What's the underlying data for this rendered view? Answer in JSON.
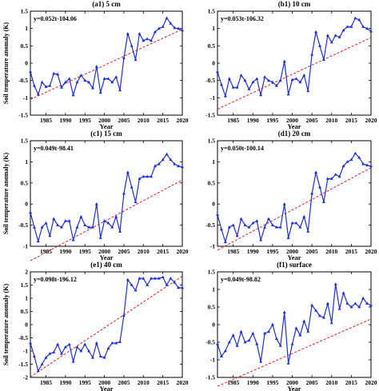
{
  "figure": {
    "ylabel": "Soil temperature anomaly (K)",
    "xlabel": "Year"
  },
  "colors": {
    "series": "#1f2fd6",
    "trend": "#e02020",
    "axes": "#000000"
  },
  "chart_data": [
    {
      "type": "line",
      "title": "(a1) 5 cm",
      "equation": "y=0.052t-104.06",
      "xlabel": "Year",
      "ylabel": "Soil temperature anomaly (K)",
      "xlim": [
        1981,
        2020
      ],
      "ylim": [
        -1.5,
        1.5
      ],
      "xticks": [
        1985,
        1990,
        1995,
        2000,
        2005,
        2010,
        2015,
        2020
      ],
      "yticks": [
        -1.5,
        -1,
        -0.5,
        0,
        0.5,
        1,
        1.5
      ],
      "trend": {
        "slope": 0.052,
        "intercept": -104.06
      },
      "x": [
        1981,
        1982,
        1983,
        1984,
        1985,
        1986,
        1987,
        1988,
        1989,
        1990,
        1991,
        1992,
        1993,
        1994,
        1995,
        1996,
        1997,
        1998,
        1999,
        2000,
        2001,
        2002,
        2003,
        2004,
        2005,
        2006,
        2007,
        2008,
        2009,
        2010,
        2011,
        2012,
        2013,
        2014,
        2015,
        2016,
        2017,
        2018,
        2019,
        2020
      ],
      "y": [
        -0.25,
        -0.65,
        -0.9,
        -0.55,
        -0.68,
        -0.65,
        -0.3,
        -0.32,
        -0.7,
        -0.55,
        -0.45,
        -0.92,
        -0.55,
        -0.35,
        -0.5,
        -0.55,
        -0.72,
        -0.1,
        -0.85,
        -0.45,
        -0.45,
        -0.55,
        -0.4,
        -0.78,
        0.15,
        0.85,
        0.5,
        0.1,
        0.85,
        0.65,
        0.7,
        0.65,
        0.9,
        1.0,
        1.05,
        1.3,
        1.15,
        1.02,
        1.0,
        0.95
      ]
    },
    {
      "type": "line",
      "title": "(b1) 10 cm",
      "equation": "y=0.053t-106.32",
      "xlabel": "Year",
      "ylabel": "",
      "xlim": [
        1981,
        2020
      ],
      "ylim": [
        -1.5,
        1.5
      ],
      "xticks": [
        1985,
        1990,
        1995,
        2000,
        2005,
        2010,
        2015,
        2020
      ],
      "yticks": [
        -1.5,
        -1,
        -0.5,
        0,
        0.5,
        1,
        1.5
      ],
      "trend": {
        "slope": 0.053,
        "intercept": -106.32
      },
      "x": [
        1981,
        1982,
        1983,
        1984,
        1985,
        1986,
        1987,
        1988,
        1989,
        1990,
        1991,
        1992,
        1993,
        1994,
        1995,
        1996,
        1997,
        1998,
        1999,
        2000,
        2001,
        2002,
        2003,
        2004,
        2005,
        2006,
        2007,
        2008,
        2009,
        2010,
        2011,
        2012,
        2013,
        2014,
        2015,
        2016,
        2017,
        2018,
        2019,
        2020
      ],
      "y": [
        -0.25,
        -0.62,
        -0.95,
        -0.45,
        -0.7,
        -0.7,
        -0.35,
        -0.5,
        -0.75,
        -0.55,
        -0.45,
        -0.92,
        -0.4,
        -0.5,
        -0.55,
        -0.65,
        -0.5,
        0.05,
        -0.9,
        -0.48,
        -0.45,
        -0.55,
        -0.35,
        -0.8,
        0.25,
        0.9,
        0.5,
        0.1,
        0.8,
        0.6,
        0.8,
        0.75,
        0.95,
        1.05,
        1.05,
        1.3,
        1.25,
        1.05,
        1.0,
        0.92
      ]
    },
    {
      "type": "line",
      "title": "(c1) 15 cm",
      "equation": "y=0.049t-98.41",
      "xlabel": "Year",
      "ylabel": "Soil temperature anomaly (K)",
      "xlim": [
        1981,
        2020
      ],
      "ylim": [
        -1,
        1.5
      ],
      "xticks": [
        1985,
        1990,
        1995,
        2000,
        2005,
        2010,
        2015,
        2020
      ],
      "yticks": [
        -1,
        -0.5,
        0,
        0.5,
        1,
        1.5
      ],
      "trend": {
        "slope": 0.049,
        "intercept": -98.41
      },
      "x": [
        1981,
        1982,
        1983,
        1984,
        1985,
        1986,
        1987,
        1988,
        1989,
        1990,
        1991,
        1992,
        1993,
        1994,
        1995,
        1996,
        1997,
        1998,
        1999,
        2000,
        2001,
        2002,
        2003,
        2004,
        2005,
        2006,
        2007,
        2008,
        2009,
        2010,
        2011,
        2012,
        2013,
        2014,
        2015,
        2016,
        2017,
        2018,
        2019,
        2020
      ],
      "y": [
        -0.2,
        -0.55,
        -0.88,
        -0.55,
        -0.45,
        -0.75,
        -0.35,
        -0.5,
        -0.55,
        -0.4,
        -0.4,
        -0.85,
        -0.55,
        -0.3,
        -0.5,
        -0.55,
        -0.55,
        0.0,
        -0.8,
        -0.4,
        -0.45,
        -0.55,
        -0.3,
        -0.65,
        0.25,
        0.75,
        0.4,
        0.05,
        0.6,
        0.65,
        0.65,
        0.65,
        0.9,
        0.95,
        1.05,
        1.18,
        1.05,
        0.95,
        0.9,
        0.88
      ]
    },
    {
      "type": "line",
      "title": "(d1) 20 cm",
      "equation": "y=0.050t-100.14",
      "xlabel": "Year",
      "ylabel": "",
      "xlim": [
        1981,
        2020
      ],
      "ylim": [
        -1,
        1.5
      ],
      "xticks": [
        1985,
        1990,
        1995,
        2000,
        2005,
        2010,
        2015,
        2020
      ],
      "yticks": [
        -1,
        -0.5,
        0,
        0.5,
        1,
        1.5
      ],
      "trend": {
        "slope": 0.05,
        "intercept": -100.14
      },
      "x": [
        1981,
        1982,
        1983,
        1984,
        1985,
        1986,
        1987,
        1988,
        1989,
        1990,
        1991,
        1992,
        1993,
        1994,
        1995,
        1996,
        1997,
        1998,
        1999,
        2000,
        2001,
        2002,
        2003,
        2004,
        2005,
        2006,
        2007,
        2008,
        2009,
        2010,
        2011,
        2012,
        2013,
        2014,
        2015,
        2016,
        2017,
        2018,
        2019,
        2020
      ],
      "y": [
        -0.25,
        -0.6,
        -0.9,
        -0.55,
        -0.5,
        -0.75,
        -0.35,
        -0.5,
        -0.55,
        -0.45,
        -0.4,
        -0.85,
        -0.55,
        -0.35,
        -0.5,
        -0.55,
        -0.55,
        0.0,
        -0.8,
        -0.45,
        -0.45,
        -0.55,
        -0.3,
        -0.65,
        0.25,
        0.75,
        0.4,
        0.05,
        0.6,
        0.6,
        0.7,
        0.65,
        0.9,
        1.0,
        1.05,
        1.2,
        1.1,
        0.95,
        0.92,
        0.9
      ]
    },
    {
      "type": "line",
      "title": "(e1) 40 cm",
      "equation": "y=0.098t-196.12",
      "xlabel": "Year",
      "ylabel": "Soil temperature anomaly (K)",
      "xlim": [
        1981,
        2020
      ],
      "ylim": [
        -2,
        2
      ],
      "xticks": [
        1985,
        1990,
        1995,
        2000,
        2005,
        2010,
        2015,
        2020
      ],
      "yticks": [
        -2,
        -1.5,
        -1,
        -0.5,
        0,
        0.5,
        1,
        1.5,
        2
      ],
      "trend": {
        "slope": 0.098,
        "intercept": -196.12
      },
      "x": [
        1981,
        1982,
        1983,
        1984,
        1985,
        1986,
        1987,
        1988,
        1989,
        1990,
        1991,
        1992,
        1993,
        1994,
        1995,
        1996,
        1997,
        1998,
        1999,
        2000,
        2001,
        2002,
        2003,
        2004,
        2005,
        2006,
        2007,
        2008,
        2009,
        2010,
        2011,
        2012,
        2013,
        2014,
        2015,
        2016,
        2017,
        2018,
        2019,
        2020
      ],
      "y": [
        -0.7,
        -1.2,
        -1.75,
        -1.5,
        -1.25,
        -1.1,
        -1.05,
        -0.75,
        -1.1,
        -0.85,
        -0.75,
        -1.4,
        -0.85,
        -1.0,
        -0.75,
        -1.0,
        -1.25,
        -0.7,
        -1.2,
        -1.25,
        -0.9,
        -0.7,
        -0.7,
        -0.65,
        0.35,
        1.7,
        1.5,
        1.3,
        1.75,
        1.75,
        1.5,
        1.75,
        1.75,
        1.75,
        1.8,
        1.5,
        1.75,
        1.6,
        1.4,
        1.4
      ]
    },
    {
      "type": "line",
      "title": "(f1) surface",
      "equation": "y=0.049t-98.82",
      "xlabel": "Year",
      "ylabel": "",
      "xlim": [
        1981,
        2020
      ],
      "ylim": [
        -1.5,
        1.5
      ],
      "xticks": [
        1985,
        1990,
        1995,
        2000,
        2005,
        2010,
        2015,
        2020
      ],
      "yticks": [
        -1.5,
        -1,
        -0.5,
        0,
        0.5,
        1,
        1.5
      ],
      "trend": {
        "slope": 0.049,
        "intercept": -98.82
      },
      "x": [
        1981,
        1982,
        1983,
        1984,
        1985,
        1986,
        1987,
        1988,
        1989,
        1990,
        1991,
        1992,
        1993,
        1994,
        1995,
        1996,
        1997,
        1998,
        1999,
        2000,
        2001,
        2002,
        2003,
        2004,
        2005,
        2006,
        2007,
        2008,
        2009,
        2010,
        2011,
        2012,
        2013,
        2014,
        2015,
        2016,
        2017,
        2018,
        2019,
        2020
      ],
      "y": [
        -0.55,
        -0.9,
        -0.75,
        -0.5,
        -0.3,
        -0.6,
        -0.2,
        -0.5,
        -0.45,
        -0.25,
        -0.55,
        -1.05,
        -0.25,
        -0.2,
        0.0,
        -0.4,
        -0.6,
        0.35,
        -1.1,
        -0.55,
        -0.1,
        -0.3,
        0.1,
        -0.2,
        0.55,
        0.4,
        0.25,
        0.2,
        0.6,
        0.05,
        1.15,
        0.45,
        0.9,
        0.6,
        0.5,
        0.6,
        0.5,
        0.75,
        0.6,
        0.55
      ]
    }
  ]
}
